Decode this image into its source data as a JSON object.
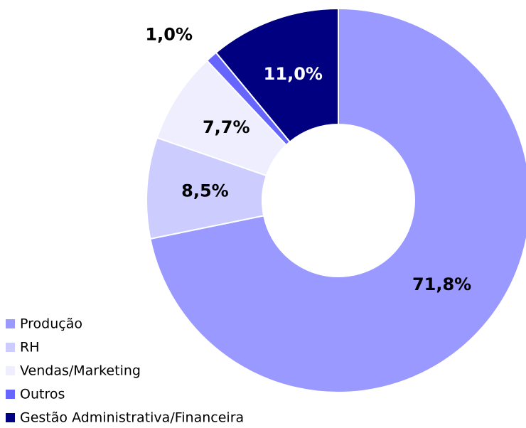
{
  "chart_data": {
    "type": "donut",
    "categories": [
      "Produção",
      "RH",
      "Vendas/Marketing",
      "Outros",
      "Gestão Administrativa/Financeira"
    ],
    "values": [
      71.8,
      8.5,
      7.7,
      1.0,
      11.0
    ],
    "value_labels": [
      "71,8%",
      "8,5%",
      "7,7%",
      "1,0%",
      "11,0%"
    ],
    "colors": [
      "#9999ff",
      "#ccccff",
      "#eeeeff",
      "#6666ff",
      "#000080"
    ],
    "legend": "bottom-left"
  }
}
